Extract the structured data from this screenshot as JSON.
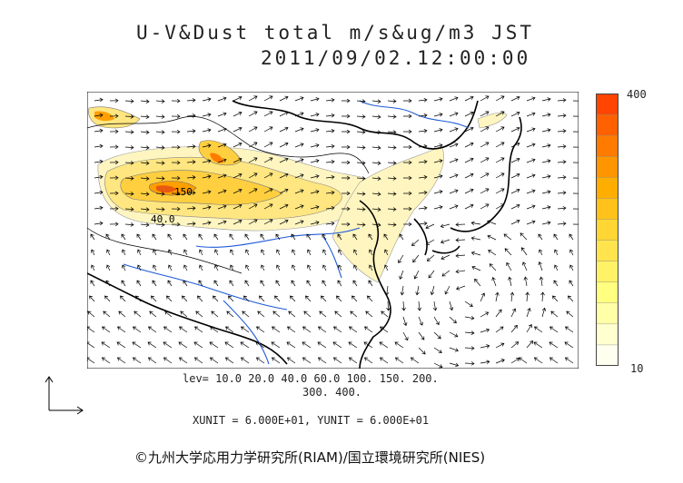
{
  "header": {
    "title": "U-V&Dust total m/s&ug/m3 JST",
    "datetime": "2011/09/02.12:00:00"
  },
  "legend": {
    "levels_line1": "lev= 10.0 20.0 40.0 60.0 100. 150. 200.",
    "levels_line2": "300. 400.",
    "colorbar_max": "400",
    "colorbar_min": "10",
    "colors": [
      "#fffff0",
      "#ffffd0",
      "#ffffa8",
      "#ffff80",
      "#fff266",
      "#ffe44d",
      "#ffd633",
      "#ffc21a",
      "#ffad00",
      "#ff9500",
      "#ff7b00",
      "#ff6000",
      "#ff4500"
    ]
  },
  "units": {
    "text": "XUNIT = 6.000E+01, YUNIT = 6.000E+01"
  },
  "map": {
    "contour_labels": [
      "150",
      "40.0"
    ]
  },
  "footer": {
    "copyright": "©九州大学応用力学研究所(RIAM)/国立環境研究所(NIES)"
  }
}
